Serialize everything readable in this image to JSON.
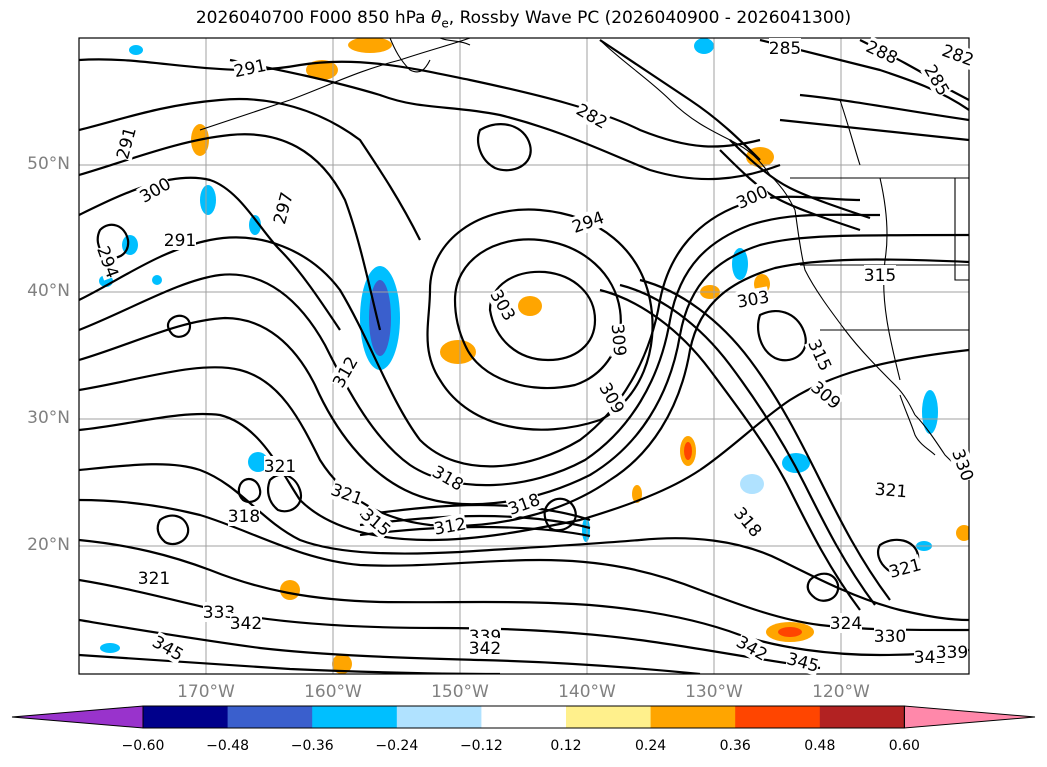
{
  "title_main": "2026040700 F000 850 hPa ",
  "title_symbol": "θ",
  "title_sub": "e",
  "title_rest": ", Rossby Wave PC (2026040900 - 2026041300)",
  "lat_labels": [
    "50°N",
    "40°N",
    "30°N",
    "20°N"
  ],
  "lon_labels": [
    "170°W",
    "160°W",
    "150°W",
    "140°W",
    "130°W",
    "120°W"
  ],
  "contour_labels": [
    "291",
    "285",
    "282",
    "288",
    "285",
    "282",
    "291",
    "300",
    "297",
    "291",
    "294",
    "294",
    "303",
    "300",
    "315",
    "309",
    "309",
    "303",
    "312",
    "315",
    "309",
    "321",
    "318",
    "318",
    "321",
    "315",
    "312",
    "318",
    "321",
    "318",
    "330",
    "321",
    "321",
    "333",
    "342",
    "345",
    "339",
    "342",
    "324",
    "330",
    "345",
    "342",
    "342",
    "339"
  ],
  "colorbar": {
    "ticks": [
      "−0.60",
      "−0.48",
      "−0.36",
      "−0.24",
      "−0.12",
      "0.12",
      "0.24",
      "0.36",
      "0.48",
      "0.60"
    ],
    "colors": [
      "#9933cc",
      "#00008b",
      "#3a5fcd",
      "#00bfff",
      "#b0e2ff",
      "#ffffff",
      "#fff08c",
      "#ffa500",
      "#ff4500",
      "#b22222",
      "#ff88aa"
    ]
  }
}
